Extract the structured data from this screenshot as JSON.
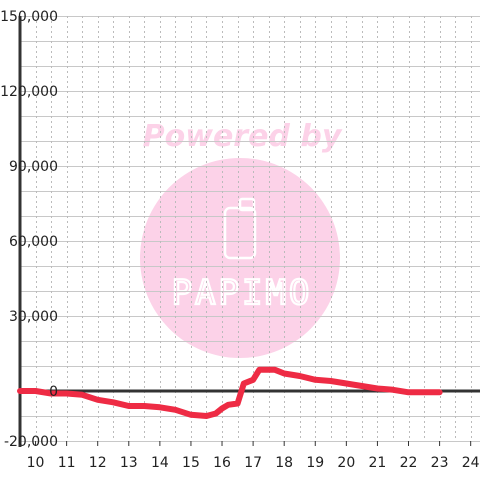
{
  "watermark": {
    "lead_text": "Powered by",
    "brand_text": "PAPIMO",
    "color": "#fcd2e8"
  },
  "chart_data": {
    "type": "line",
    "title": "",
    "xlabel": "",
    "ylabel": "",
    "xlim": [
      9.5,
      24.3
    ],
    "ylim": [
      -20000,
      150000
    ],
    "x_ticks": [
      10,
      11,
      12,
      13,
      14,
      15,
      16,
      17,
      18,
      19,
      20,
      21,
      22,
      23,
      24
    ],
    "x_tick_labels": [
      "10",
      "11",
      "12",
      "13",
      "14",
      "15",
      "16",
      "17",
      "18",
      "19",
      "20",
      "21",
      "22",
      "23",
      "24"
    ],
    "y_ticks": [
      -20000,
      0,
      30000,
      60000,
      90000,
      120000,
      150000
    ],
    "y_tick_labels": [
      "-20,000",
      "0",
      "30,000",
      "60,000",
      "90,000",
      "120,000",
      "150,000"
    ],
    "grid": {
      "horizontal": true,
      "vertical": true,
      "vertical_style": "dotted"
    },
    "legend": "none",
    "series": [
      {
        "color": "#ee2b44",
        "x": [
          9.5,
          10.0,
          10.5,
          11.0,
          11.5,
          12.0,
          12.5,
          13.0,
          13.5,
          14.0,
          14.5,
          15.0,
          15.5,
          15.8,
          16.0,
          16.2,
          16.5,
          16.7,
          17.0,
          17.2,
          17.7,
          18.0,
          18.5,
          19.0,
          19.5,
          20.0,
          20.5,
          21.0,
          21.5,
          22.0,
          22.5,
          23.0
        ],
        "values": [
          0,
          0,
          -1000,
          -1000,
          -1500,
          -3500,
          -4500,
          -6000,
          -6000,
          -6500,
          -7500,
          -9500,
          -10000,
          -9000,
          -7000,
          -5500,
          -5000,
          3000,
          4500,
          8500,
          8500,
          7000,
          6000,
          4500,
          4000,
          3000,
          2000,
          1000,
          500,
          -500,
          -500,
          -500
        ]
      }
    ]
  }
}
